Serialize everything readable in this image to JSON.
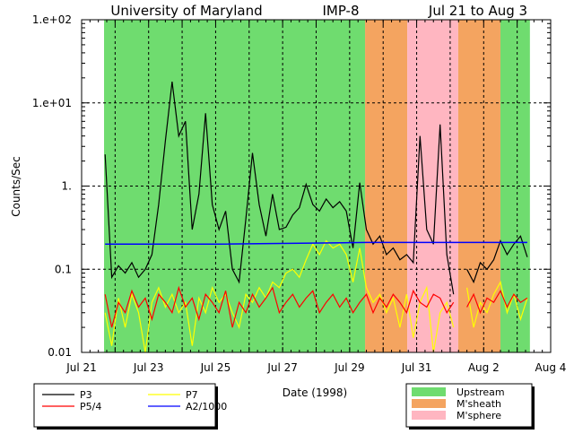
{
  "chart_data": {
    "type": "line",
    "title_parts": [
      "University of Maryland",
      "IMP-8",
      "Jul 21 to Aug 3"
    ],
    "xlabel": "Date (1998)",
    "ylabel": "Counts/Sec",
    "x_units": "days since Jul 21 1998",
    "xlim": [
      0,
      14
    ],
    "ylim": [
      0.01,
      100
    ],
    "yscale": "log",
    "grid": true,
    "x_ticks": [
      {
        "value": 0,
        "label": "Jul 21"
      },
      {
        "value": 2,
        "label": "Jul 23"
      },
      {
        "value": 4,
        "label": "Jul 25"
      },
      {
        "value": 6,
        "label": "Jul 27"
      },
      {
        "value": 8,
        "label": "Jul 29"
      },
      {
        "value": 10,
        "label": "Jul 31"
      },
      {
        "value": 12,
        "label": "Aug 2"
      },
      {
        "value": 14,
        "label": "Aug 4"
      }
    ],
    "y_ticks": [
      {
        "value": 100,
        "label": "1.e+02"
      },
      {
        "value": 10,
        "label": "1.e+01"
      },
      {
        "value": 1,
        "label": "1."
      },
      {
        "value": 0.1,
        "label": "0.1"
      },
      {
        "value": 0.01,
        "label": "0.01"
      }
    ],
    "regions": [
      {
        "name": "Upstream",
        "start": 0.67,
        "end": 8.46,
        "color": "#6fdc6f"
      },
      {
        "name": "M'sheath",
        "start": 8.46,
        "end": 9.72,
        "color": "#f4a460"
      },
      {
        "name": "M'sphere",
        "start": 9.72,
        "end": 11.24,
        "color": "#ffb6c1"
      },
      {
        "name": "M'sheath",
        "start": 11.24,
        "end": 12.5,
        "color": "#f4a460"
      },
      {
        "name": "Upstream",
        "start": 12.5,
        "end": 13.38,
        "color": "#6fdc6f"
      }
    ],
    "region_legend": [
      {
        "name": "Upstream",
        "color": "#6fdc6f"
      },
      {
        "name": "M'sheath",
        "color": "#f4a460"
      },
      {
        "name": "M'sphere",
        "color": "#ffb6c1"
      }
    ],
    "x_start": 0.7,
    "x_step": 0.2,
    "series": [
      {
        "name": "P3",
        "color": "#000000",
        "values": [
          2.4,
          0.08,
          0.11,
          0.09,
          0.12,
          0.08,
          0.1,
          0.15,
          0.6,
          3.5,
          18,
          4,
          6,
          0.3,
          0.8,
          7.5,
          0.6,
          0.3,
          0.5,
          0.1,
          0.07,
          0.4,
          2.5,
          0.6,
          0.25,
          0.8,
          0.3,
          0.32,
          0.45,
          0.55,
          1.05,
          0.6,
          0.5,
          0.7,
          0.55,
          0.65,
          0.5,
          0.18,
          1.1,
          0.3,
          0.2,
          0.25,
          0.15,
          0.18,
          0.13,
          0.15,
          0.12,
          4,
          0.3,
          0.2,
          5.5,
          0.15,
          0.05,
          null,
          0.1,
          0.07,
          0.12,
          0.1,
          0.13,
          0.22,
          0.15,
          0.2,
          0.25,
          0.14
        ]
      },
      {
        "name": "P7",
        "color": "#ffff00",
        "values": [
          0.03,
          0.012,
          0.045,
          0.02,
          0.05,
          0.03,
          0.01,
          0.04,
          0.06,
          0.035,
          0.05,
          0.03,
          0.04,
          0.012,
          0.045,
          0.03,
          0.06,
          0.04,
          0.05,
          0.03,
          0.02,
          0.05,
          0.04,
          0.06,
          0.045,
          0.07,
          0.06,
          0.09,
          0.1,
          0.08,
          0.13,
          0.2,
          0.15,
          0.22,
          0.18,
          0.2,
          0.15,
          0.07,
          0.18,
          0.06,
          0.04,
          0.05,
          0.03,
          0.045,
          0.02,
          0.05,
          0.015,
          0.04,
          0.06,
          0.01,
          0.03,
          0.04,
          0.02,
          null,
          0.06,
          0.02,
          0.04,
          0.03,
          0.05,
          0.07,
          0.03,
          0.05,
          0.025,
          0.045
        ]
      },
      {
        "name": "P5/4",
        "color": "#ff0000",
        "values": [
          0.05,
          0.02,
          0.04,
          0.03,
          0.055,
          0.035,
          0.045,
          0.025,
          0.05,
          0.04,
          0.03,
          0.06,
          0.035,
          0.045,
          0.025,
          0.05,
          0.04,
          0.03,
          0.055,
          0.02,
          0.04,
          0.03,
          0.05,
          0.035,
          0.045,
          0.06,
          0.03,
          0.04,
          0.05,
          0.035,
          0.045,
          0.055,
          0.03,
          0.04,
          0.05,
          0.035,
          0.045,
          0.03,
          0.04,
          0.05,
          0.03,
          0.045,
          0.035,
          0.05,
          0.04,
          0.03,
          0.055,
          0.04,
          0.035,
          0.05,
          0.045,
          0.03,
          0.04,
          null,
          0.035,
          0.05,
          0.03,
          0.045,
          0.04,
          0.055,
          0.035,
          0.05,
          0.04,
          0.045
        ]
      },
      {
        "name": "A2/1000",
        "color": "#0000ff",
        "x": [
          0.7,
          4.0,
          8.5,
          13.3
        ],
        "values": [
          0.2,
          0.2,
          0.21,
          0.21
        ]
      }
    ],
    "series_legend_order": [
      "P3",
      "P7",
      "P5/4",
      "A2/1000"
    ]
  }
}
